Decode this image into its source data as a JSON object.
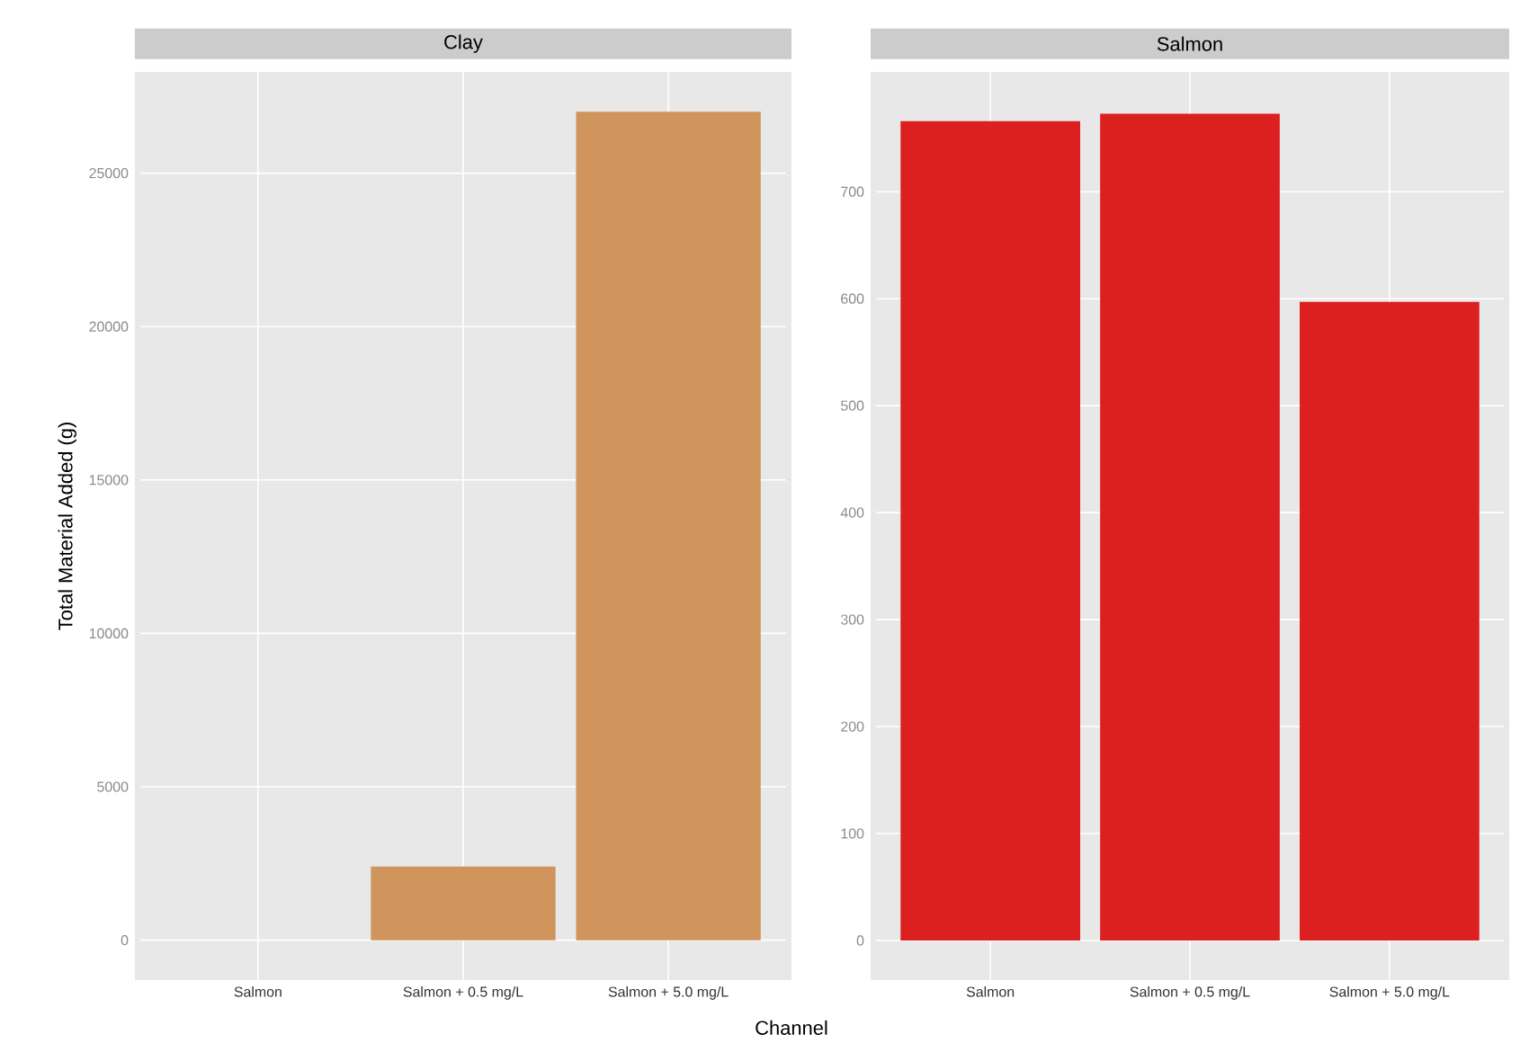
{
  "chart_data": [
    {
      "type": "bar",
      "title": "Clay",
      "ylabel": "Total Material Added (g)",
      "xlabel": "Channel",
      "categories": [
        "Salmon",
        "Salmon + 0.5 mg/L",
        "Salmon + 5.0 mg/L"
      ],
      "values": [
        null,
        2400,
        27000
      ],
      "color": "#cf955d",
      "ylim": [
        -1300,
        28300
      ],
      "yticks": [
        0,
        5000,
        10000,
        15000,
        20000,
        25000
      ],
      "grid": true
    },
    {
      "type": "bar",
      "title": "Salmon",
      "categories": [
        "Salmon",
        "Salmon + 0.5 mg/L",
        "Salmon + 5.0 mg/L"
      ],
      "values": [
        766,
        773,
        597
      ],
      "color": "#dc1f1f",
      "ylim": [
        -37,
        812
      ],
      "yticks": [
        0,
        100,
        200,
        300,
        400,
        500,
        600,
        700
      ],
      "grid": true
    }
  ]
}
